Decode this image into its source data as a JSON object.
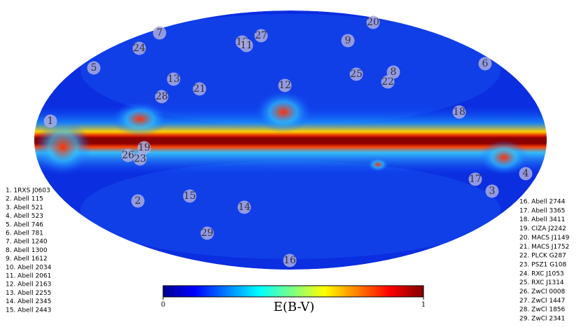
{
  "map": {
    "markers": [
      "1",
      "2",
      "3",
      "4",
      "5",
      "6",
      "7",
      "8",
      "9",
      "10",
      "11",
      "12",
      "13",
      "14",
      "15",
      "16",
      "17",
      "18",
      "19",
      "20",
      "21",
      "22",
      "23",
      "24",
      "25",
      "26",
      "27",
      "28",
      "29"
    ],
    "legend": [
      "1. 1RXS J0603",
      "2. Abell 115",
      "3. Abell 521",
      "4. Abell 523",
      "5. Abell 746",
      "6. Abell 781",
      "7. Abell 1240",
      "8. Abell 1300",
      "9. Abell 1612",
      "10. Abell 2034",
      "11. Abell 2061",
      "12. Abell 2163",
      "13. Abell 2255",
      "14. Abell 2345",
      "15. Abell 2443",
      "16. Abell 2744",
      "17. Abell 3365",
      "18. Abell 3411",
      "19. CIZA J2242",
      "20. MACS J1149",
      "21. MACS J1752",
      "22. PLCK G287",
      "23. PSZ1 G108",
      "24. RXC J1053",
      "25. RXC J1314",
      "26. ZwCl 0008",
      "27. ZwCl 1447",
      "28. ZwCl 1856",
      "29. ZwCl 2341"
    ],
    "colorbar": {
      "label": "E(B-V)",
      "ticks": [
        0,
        1
      ]
    }
  }
}
